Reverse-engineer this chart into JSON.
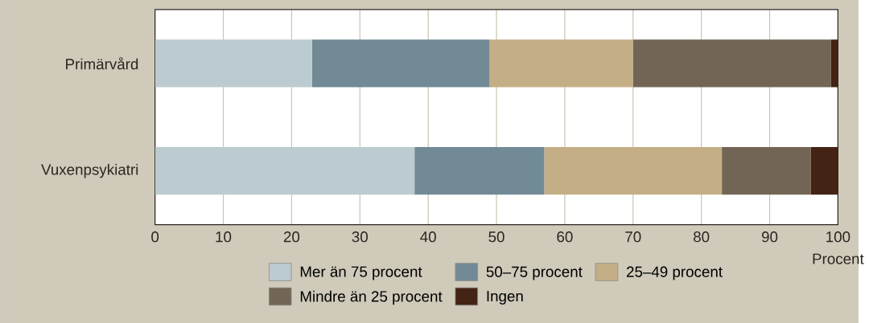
{
  "chart_data": {
    "type": "bar",
    "orientation": "horizontal",
    "stacked": true,
    "categories": [
      "Primärvård",
      "Vuxenpsykiatri"
    ],
    "series": [
      {
        "name": "Mer än 75 procent",
        "color": "#bccbd0",
        "values": [
          23,
          38
        ]
      },
      {
        "name": "50–75 procent",
        "color": "#718a96",
        "values": [
          26,
          19
        ]
      },
      {
        "name": "25–49 procent",
        "color": "#c4ae86",
        "values": [
          21,
          26
        ]
      },
      {
        "name": "Mindre än 25 procent",
        "color": "#736555",
        "values": [
          29,
          13
        ]
      },
      {
        "name": "Ingen",
        "color": "#432313",
        "values": [
          1,
          4
        ]
      }
    ],
    "xlim": [
      0,
      100
    ],
    "xticks": [
      0,
      10,
      20,
      30,
      40,
      50,
      60,
      70,
      80,
      90,
      100
    ],
    "xlabel": "Procent",
    "grid": "x",
    "legend": "bottom"
  }
}
